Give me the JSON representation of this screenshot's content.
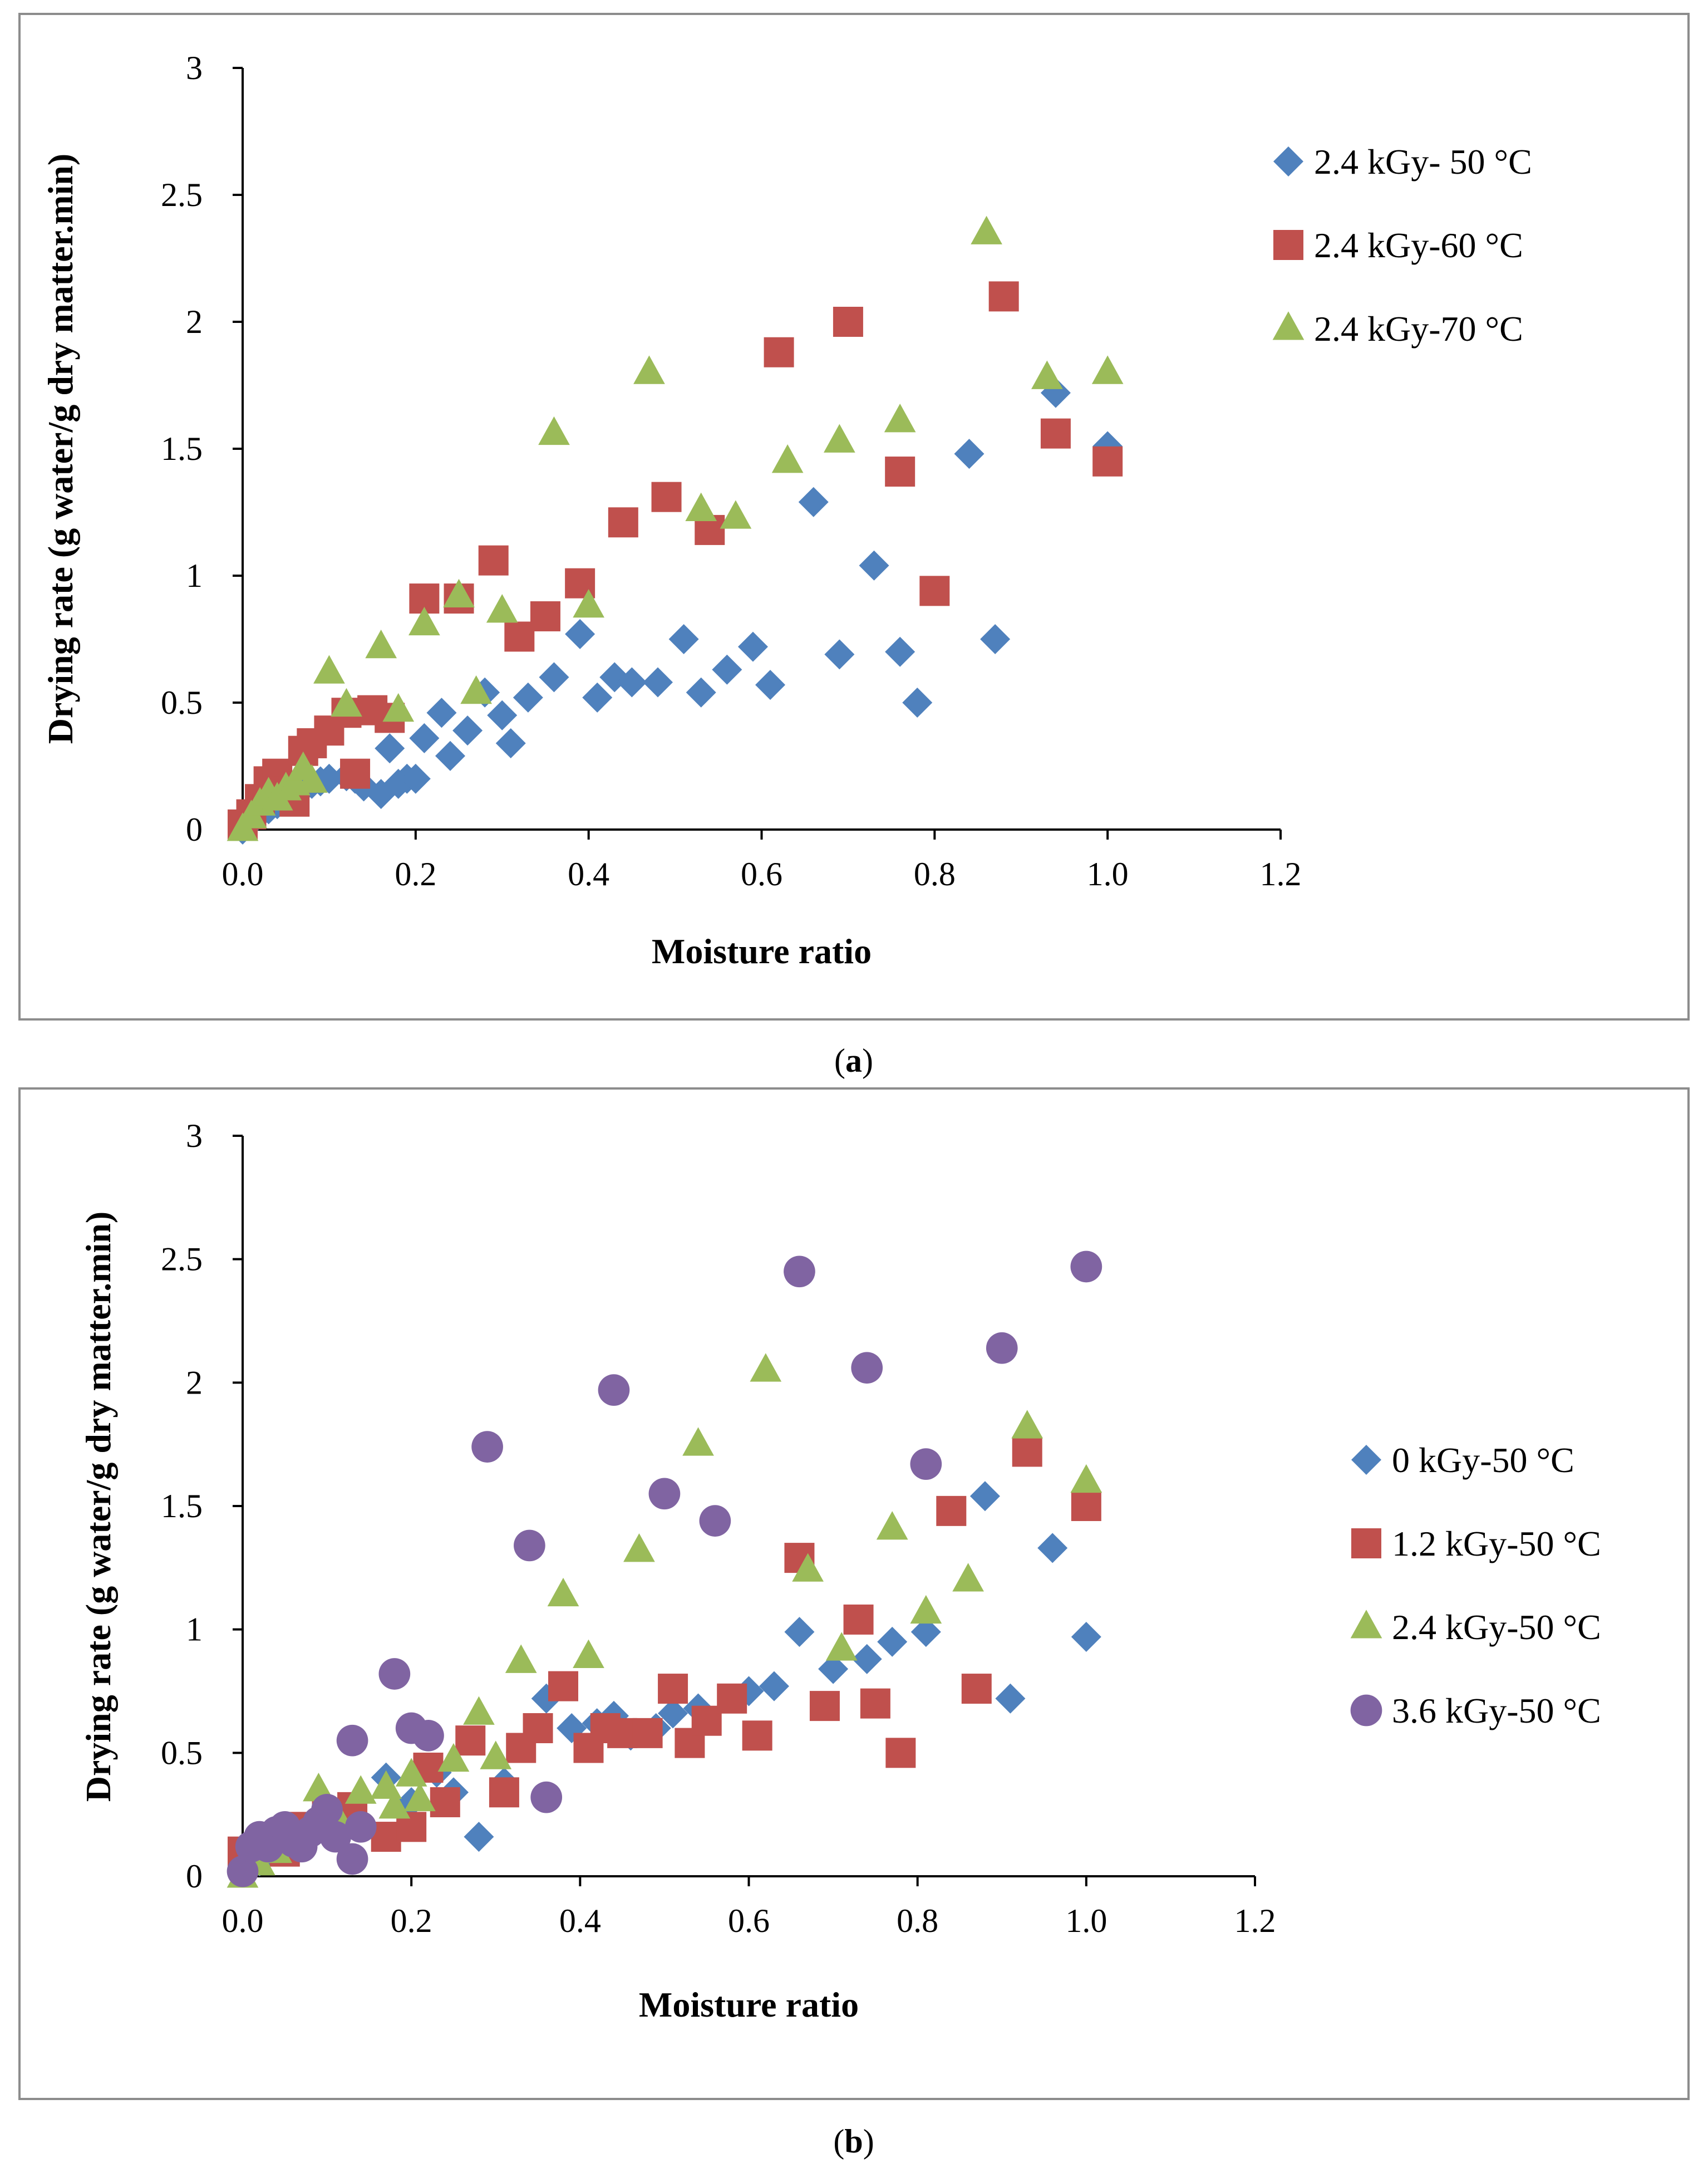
{
  "figure": {
    "panels": [
      {
        "caption_letter": "a"
      },
      {
        "caption_letter": "b"
      }
    ]
  },
  "chart_data": [
    {
      "type": "scatter",
      "panel": "a",
      "title": "",
      "xlabel": "Moisture ratio",
      "ylabel": "Drying rate (g water/g dry matter.min)",
      "xlim": [
        0,
        1.2
      ],
      "ylim": [
        0,
        3
      ],
      "xticks": [
        0,
        0.2,
        0.4,
        0.6,
        0.8,
        1.0,
        1.2
      ],
      "xtick_labels": [
        "0.0",
        "0.2",
        "0.4",
        "0.6",
        "0.8",
        "1.0",
        "1.2"
      ],
      "yticks": [
        0,
        0.5,
        1,
        1.5,
        2,
        2.5,
        3
      ],
      "ytick_labels": [
        "0",
        "0.5",
        "1",
        "1.5",
        "2",
        "2.5",
        "3"
      ],
      "grid": false,
      "legend_position": "right",
      "series": [
        {
          "name": "2.4 kGy- 50 °C",
          "marker": "diamond",
          "color": "#4f81bd",
          "points": [
            [
              0.0,
              0.0
            ],
            [
              0.01,
              0.03
            ],
            [
              0.02,
              0.06
            ],
            [
              0.03,
              0.08
            ],
            [
              0.04,
              0.1
            ],
            [
              0.05,
              0.12
            ],
            [
              0.06,
              0.14
            ],
            [
              0.07,
              0.16
            ],
            [
              0.08,
              0.18
            ],
            [
              0.09,
              0.19
            ],
            [
              0.1,
              0.2
            ],
            [
              0.12,
              0.21
            ],
            [
              0.13,
              0.2
            ],
            [
              0.14,
              0.17
            ],
            [
              0.16,
              0.14
            ],
            [
              0.17,
              0.32
            ],
            [
              0.18,
              0.18
            ],
            [
              0.19,
              0.2
            ],
            [
              0.2,
              0.2
            ],
            [
              0.21,
              0.36
            ],
            [
              0.23,
              0.46
            ],
            [
              0.24,
              0.29
            ],
            [
              0.26,
              0.39
            ],
            [
              0.28,
              0.54
            ],
            [
              0.3,
              0.45
            ],
            [
              0.31,
              0.34
            ],
            [
              0.33,
              0.52
            ],
            [
              0.36,
              0.6
            ],
            [
              0.39,
              0.77
            ],
            [
              0.41,
              0.52
            ],
            [
              0.43,
              0.6
            ],
            [
              0.45,
              0.58
            ],
            [
              0.48,
              0.58
            ],
            [
              0.51,
              0.75
            ],
            [
              0.53,
              0.54
            ],
            [
              0.56,
              0.63
            ],
            [
              0.59,
              0.72
            ],
            [
              0.61,
              0.57
            ],
            [
              0.66,
              1.29
            ],
            [
              0.69,
              0.69
            ],
            [
              0.73,
              1.04
            ],
            [
              0.76,
              0.7
            ],
            [
              0.78,
              0.5
            ],
            [
              0.84,
              1.48
            ],
            [
              0.87,
              0.75
            ],
            [
              0.94,
              1.72
            ],
            [
              1.0,
              1.51
            ]
          ]
        },
        {
          "name": "2.4 kGy-60 °C",
          "marker": "square",
          "color": "#c0504d",
          "points": [
            [
              0.0,
              0.02
            ],
            [
              0.01,
              0.06
            ],
            [
              0.02,
              0.12
            ],
            [
              0.03,
              0.19
            ],
            [
              0.04,
              0.22
            ],
            [
              0.05,
              0.15
            ],
            [
              0.06,
              0.11
            ],
            [
              0.07,
              0.31
            ],
            [
              0.08,
              0.34
            ],
            [
              0.1,
              0.39
            ],
            [
              0.12,
              0.46
            ],
            [
              0.13,
              0.22
            ],
            [
              0.15,
              0.47
            ],
            [
              0.17,
              0.44
            ],
            [
              0.21,
              0.91
            ],
            [
              0.25,
              0.91
            ],
            [
              0.29,
              1.06
            ],
            [
              0.32,
              0.76
            ],
            [
              0.35,
              0.84
            ],
            [
              0.39,
              0.97
            ],
            [
              0.44,
              1.21
            ],
            [
              0.49,
              1.31
            ],
            [
              0.54,
              1.18
            ],
            [
              0.62,
              1.88
            ],
            [
              0.7,
              2.0
            ],
            [
              0.76,
              1.41
            ],
            [
              0.8,
              0.94
            ],
            [
              0.88,
              2.1
            ],
            [
              0.94,
              1.56
            ],
            [
              1.0,
              1.45
            ]
          ]
        },
        {
          "name": "2.4 kGy-70 °C",
          "marker": "triangle",
          "color": "#9bbb59",
          "points": [
            [
              0.0,
              0.0
            ],
            [
              0.01,
              0.05
            ],
            [
              0.02,
              0.1
            ],
            [
              0.03,
              0.14
            ],
            [
              0.04,
              0.12
            ],
            [
              0.05,
              0.16
            ],
            [
              0.06,
              0.18
            ],
            [
              0.07,
              0.24
            ],
            [
              0.08,
              0.19
            ],
            [
              0.1,
              0.62
            ],
            [
              0.12,
              0.49
            ],
            [
              0.16,
              0.72
            ],
            [
              0.18,
              0.47
            ],
            [
              0.21,
              0.81
            ],
            [
              0.25,
              0.92
            ],
            [
              0.27,
              0.54
            ],
            [
              0.3,
              0.86
            ],
            [
              0.36,
              1.56
            ],
            [
              0.4,
              0.88
            ],
            [
              0.47,
              1.8
            ],
            [
              0.53,
              1.26
            ],
            [
              0.57,
              1.23
            ],
            [
              0.63,
              1.45
            ],
            [
              0.69,
              1.53
            ],
            [
              0.76,
              1.61
            ],
            [
              0.86,
              2.35
            ],
            [
              0.93,
              1.78
            ],
            [
              1.0,
              1.8
            ]
          ]
        }
      ]
    },
    {
      "type": "scatter",
      "panel": "b",
      "title": "",
      "xlabel": "Moisture ratio",
      "ylabel": "Drying rate (g water/g dry matter.min)",
      "xlim": [
        0,
        1.2
      ],
      "ylim": [
        0,
        3
      ],
      "xticks": [
        0,
        0.2,
        0.4,
        0.6,
        0.8,
        1.0,
        1.2
      ],
      "xtick_labels": [
        "0.0",
        "0.2",
        "0.4",
        "0.6",
        "0.8",
        "1.0",
        "1.2"
      ],
      "yticks": [
        0,
        0.5,
        1,
        1.5,
        2,
        2.5,
        3
      ],
      "ytick_labels": [
        "0",
        "0.5",
        "1",
        "1.5",
        "2",
        "2.5",
        "3"
      ],
      "grid": false,
      "legend_position": "right",
      "series": [
        {
          "name": "0 kGy-50 °C",
          "marker": "diamond",
          "color": "#4f81bd",
          "points": [
            [
              0.0,
              0.02
            ],
            [
              0.02,
              0.06
            ],
            [
              0.04,
              0.1
            ],
            [
              0.06,
              0.14
            ],
            [
              0.08,
              0.18
            ],
            [
              0.1,
              0.22
            ],
            [
              0.12,
              0.25
            ],
            [
              0.14,
              0.2
            ],
            [
              0.17,
              0.4
            ],
            [
              0.2,
              0.3
            ],
            [
              0.23,
              0.42
            ],
            [
              0.25,
              0.34
            ],
            [
              0.28,
              0.16
            ],
            [
              0.31,
              0.38
            ],
            [
              0.36,
              0.72
            ],
            [
              0.39,
              0.6
            ],
            [
              0.42,
              0.62
            ],
            [
              0.44,
              0.65
            ],
            [
              0.46,
              0.57
            ],
            [
              0.49,
              0.6
            ],
            [
              0.51,
              0.66
            ],
            [
              0.54,
              0.68
            ],
            [
              0.6,
              0.75
            ],
            [
              0.63,
              0.77
            ],
            [
              0.66,
              0.99
            ],
            [
              0.7,
              0.84
            ],
            [
              0.74,
              0.88
            ],
            [
              0.77,
              0.95
            ],
            [
              0.81,
              0.99
            ],
            [
              0.88,
              1.54
            ],
            [
              0.91,
              0.72
            ],
            [
              0.96,
              1.33
            ],
            [
              1.0,
              0.97
            ]
          ]
        },
        {
          "name": "1.2 kGy-50 °C",
          "marker": "square",
          "color": "#c0504d",
          "points": [
            [
              0.0,
              0.1
            ],
            [
              0.03,
              0.15
            ],
            [
              0.05,
              0.1
            ],
            [
              0.07,
              0.2
            ],
            [
              0.1,
              0.25
            ],
            [
              0.13,
              0.28
            ],
            [
              0.17,
              0.16
            ],
            [
              0.2,
              0.2
            ],
            [
              0.22,
              0.44
            ],
            [
              0.24,
              0.3
            ],
            [
              0.27,
              0.55
            ],
            [
              0.31,
              0.34
            ],
            [
              0.33,
              0.52
            ],
            [
              0.35,
              0.6
            ],
            [
              0.38,
              0.77
            ],
            [
              0.41,
              0.52
            ],
            [
              0.43,
              0.6
            ],
            [
              0.45,
              0.58
            ],
            [
              0.48,
              0.58
            ],
            [
              0.51,
              0.76
            ],
            [
              0.53,
              0.54
            ],
            [
              0.55,
              0.63
            ],
            [
              0.58,
              0.72
            ],
            [
              0.61,
              0.57
            ],
            [
              0.66,
              1.29
            ],
            [
              0.69,
              0.69
            ],
            [
              0.73,
              1.04
            ],
            [
              0.75,
              0.7
            ],
            [
              0.78,
              0.5
            ],
            [
              0.84,
              1.48
            ],
            [
              0.87,
              0.76
            ],
            [
              0.93,
              1.72
            ],
            [
              1.0,
              1.5
            ]
          ]
        },
        {
          "name": "2.4 kGy-50 °C",
          "marker": "triangle",
          "color": "#9bbb59",
          "points": [
            [
              0.0,
              0.0
            ],
            [
              0.02,
              0.05
            ],
            [
              0.04,
              0.1
            ],
            [
              0.06,
              0.15
            ],
            [
              0.09,
              0.35
            ],
            [
              0.11,
              0.25
            ],
            [
              0.14,
              0.34
            ],
            [
              0.17,
              0.36
            ],
            [
              0.18,
              0.28
            ],
            [
              0.2,
              0.41
            ],
            [
              0.21,
              0.31
            ],
            [
              0.25,
              0.47
            ],
            [
              0.28,
              0.66
            ],
            [
              0.3,
              0.48
            ],
            [
              0.33,
              0.87
            ],
            [
              0.38,
              1.14
            ],
            [
              0.41,
              0.89
            ],
            [
              0.47,
              1.32
            ],
            [
              0.54,
              1.75
            ],
            [
              0.62,
              2.05
            ],
            [
              0.67,
              1.24
            ],
            [
              0.71,
              0.92
            ],
            [
              0.77,
              1.41
            ],
            [
              0.81,
              1.07
            ],
            [
              0.86,
              1.2
            ],
            [
              0.93,
              1.82
            ],
            [
              1.0,
              1.6
            ]
          ]
        },
        {
          "name": "3.6 kGy-50 °C",
          "marker": "circle",
          "color": "#8064a2",
          "points": [
            [
              0.0,
              0.02
            ],
            [
              0.01,
              0.12
            ],
            [
              0.02,
              0.16
            ],
            [
              0.03,
              0.12
            ],
            [
              0.04,
              0.18
            ],
            [
              0.05,
              0.2
            ],
            [
              0.06,
              0.14
            ],
            [
              0.07,
              0.12
            ],
            [
              0.08,
              0.18
            ],
            [
              0.09,
              0.22
            ],
            [
              0.1,
              0.27
            ],
            [
              0.11,
              0.16
            ],
            [
              0.13,
              0.55
            ],
            [
              0.13,
              0.07
            ],
            [
              0.14,
              0.2
            ],
            [
              0.18,
              0.82
            ],
            [
              0.2,
              0.6
            ],
            [
              0.22,
              0.57
            ],
            [
              0.29,
              1.74
            ],
            [
              0.34,
              1.34
            ],
            [
              0.36,
              0.32
            ],
            [
              0.44,
              1.97
            ],
            [
              0.5,
              1.55
            ],
            [
              0.56,
              1.44
            ],
            [
              0.66,
              2.45
            ],
            [
              0.74,
              2.06
            ],
            [
              0.81,
              1.67
            ],
            [
              0.9,
              2.14
            ],
            [
              1.0,
              2.47
            ]
          ]
        }
      ]
    }
  ]
}
